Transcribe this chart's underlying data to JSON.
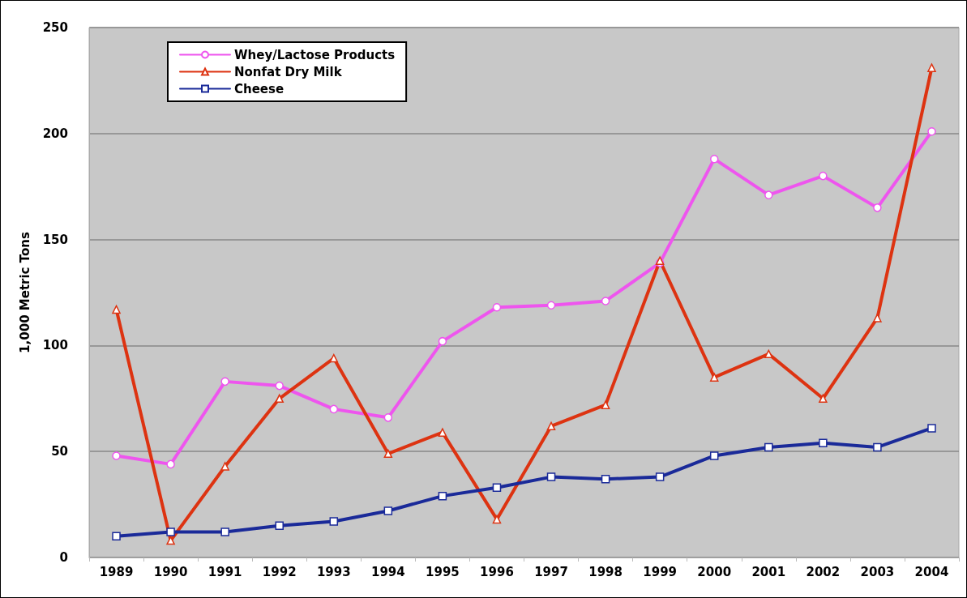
{
  "chart_data": {
    "type": "line",
    "ylabel": "1,000 Metric Tons",
    "categories": [
      "1989",
      "1990",
      "1991",
      "1992",
      "1993",
      "1994",
      "1995",
      "1996",
      "1997",
      "1998",
      "1999",
      "2000",
      "2001",
      "2002",
      "2003",
      "2004"
    ],
    "series": [
      {
        "name": "Whey/Lactose Products",
        "color": "#ee55ee",
        "marker": "circle",
        "values": [
          48,
          44,
          83,
          81,
          70,
          66,
          102,
          118,
          119,
          121,
          139,
          188,
          171,
          180,
          165,
          201
        ]
      },
      {
        "name": "Nonfat Dry Milk",
        "color": "#dd3311",
        "marker": "triangle",
        "values": [
          117,
          8,
          43,
          75,
          94,
          49,
          59,
          18,
          62,
          72,
          140,
          85,
          96,
          75,
          113,
          231
        ]
      },
      {
        "name": "Cheese",
        "color": "#1a2a99",
        "marker": "square",
        "values": [
          10,
          12,
          12,
          15,
          17,
          22,
          29,
          33,
          38,
          37,
          38,
          48,
          52,
          54,
          52,
          61
        ]
      }
    ],
    "ylim": [
      0,
      250
    ],
    "yticks": [
      0,
      50,
      100,
      150,
      200,
      250
    ],
    "grid": "y",
    "legend": "top left",
    "line_style": "solid"
  }
}
